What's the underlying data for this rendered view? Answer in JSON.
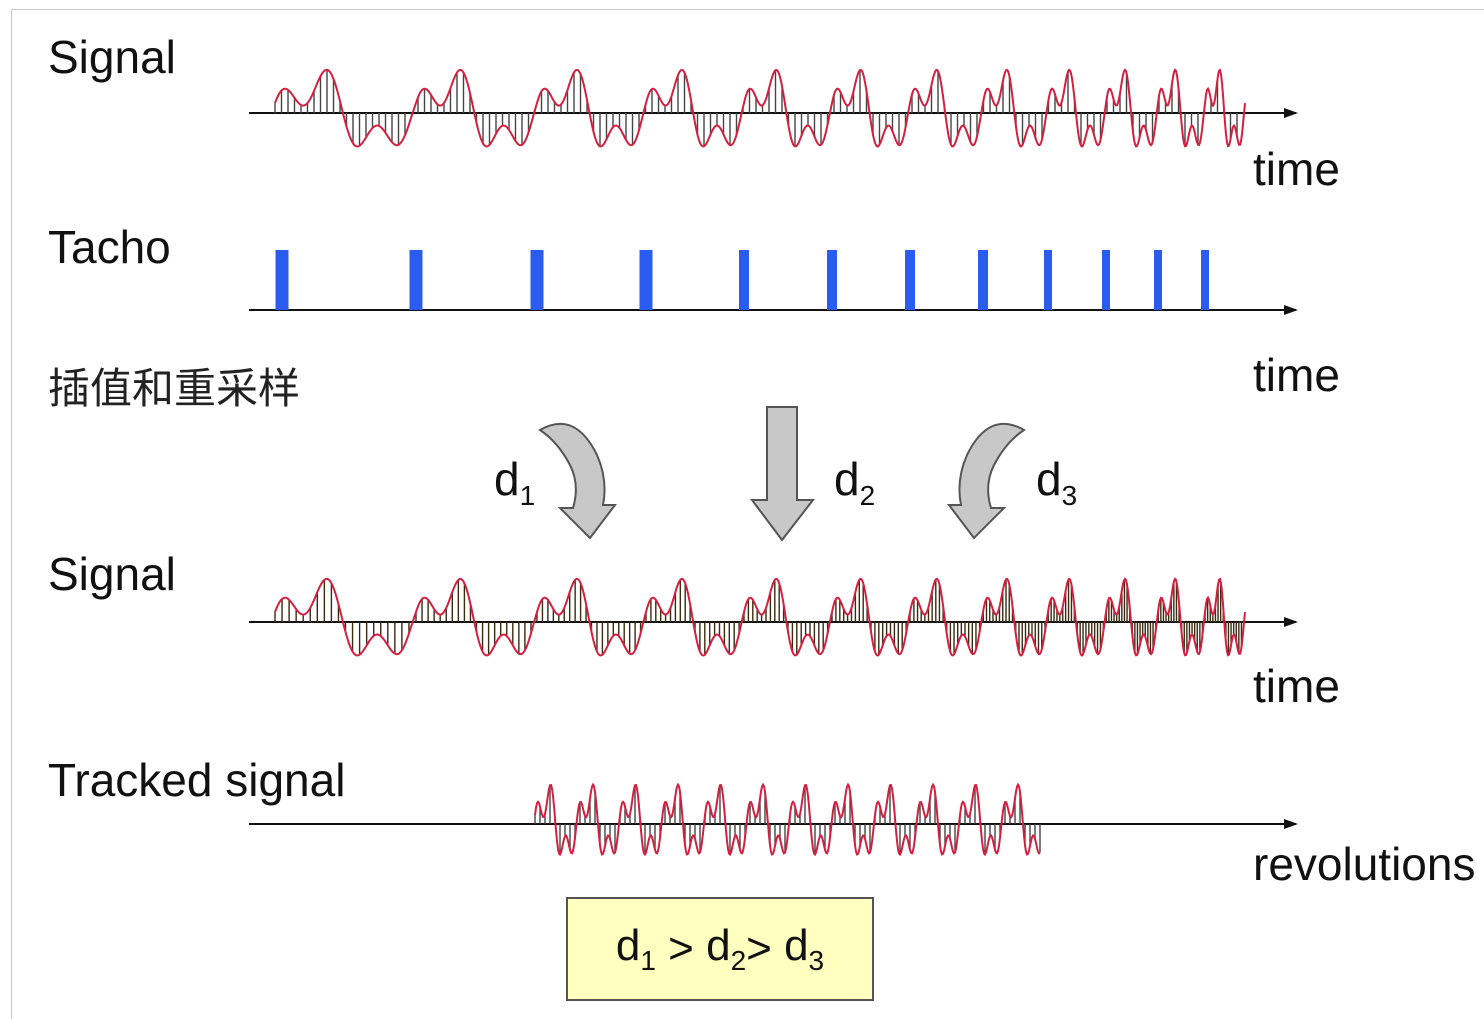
{
  "rows": {
    "signal_top_label": "Signal",
    "tacho_label": "Tacho",
    "resample_label": "插值和重采样",
    "signal_bottom_label": "Signal",
    "tracked_label": "Tracked signal"
  },
  "axes": {
    "time_1": "time",
    "time_2": "time",
    "time_3": "time",
    "revolutions": "revolutions"
  },
  "arrows": [
    {
      "base": "d",
      "sub": "1"
    },
    {
      "base": "d",
      "sub": "2"
    },
    {
      "base": "d",
      "sub": "3"
    }
  ],
  "formula": {
    "d1_base": "d",
    "d1_sub": "1",
    "gt1": " > ",
    "d2_base": "d",
    "d2_sub": "2",
    "gt2": "> ",
    "d3_base": "d",
    "d3_sub": "3"
  },
  "colors": {
    "waveform": "#d42040",
    "tacho_pulse": "#2a5cf0",
    "sample_lines_top": "#444444",
    "sample_lines_bottom": "#3a2a10",
    "arrow_fill": "#c8c8c8",
    "formula_bg": "#ffffc0"
  }
}
